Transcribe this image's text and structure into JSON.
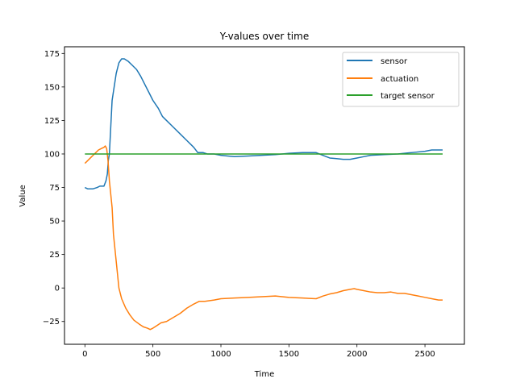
{
  "chart_data": {
    "type": "line",
    "title": "Y-values over time",
    "xlabel": "Time",
    "ylabel": "Value",
    "xlim": [
      -150,
      2790
    ],
    "ylim": [
      -42,
      180
    ],
    "xticks": [
      0,
      500,
      1000,
      1500,
      2000,
      2500
    ],
    "yticks": [
      -25,
      0,
      25,
      50,
      75,
      100,
      125,
      150,
      175
    ],
    "grid": false,
    "legend_position": "top-right",
    "series": [
      {
        "name": "sensor",
        "color": "#1f77b4",
        "points": [
          [
            0,
            75
          ],
          [
            20,
            74
          ],
          [
            60,
            74
          ],
          [
            90,
            75
          ],
          [
            110,
            76
          ],
          [
            140,
            76
          ],
          [
            155,
            80
          ],
          [
            165,
            85
          ],
          [
            172,
            95
          ],
          [
            180,
            100
          ],
          [
            190,
            120
          ],
          [
            200,
            140
          ],
          [
            215,
            150
          ],
          [
            230,
            160
          ],
          [
            250,
            168
          ],
          [
            270,
            171
          ],
          [
            290,
            171
          ],
          [
            320,
            169
          ],
          [
            350,
            166
          ],
          [
            380,
            163
          ],
          [
            410,
            158
          ],
          [
            440,
            152
          ],
          [
            470,
            146
          ],
          [
            500,
            140
          ],
          [
            540,
            134
          ],
          [
            570,
            128
          ],
          [
            600,
            125
          ],
          [
            650,
            120
          ],
          [
            700,
            115
          ],
          [
            750,
            110
          ],
          [
            800,
            105
          ],
          [
            830,
            101
          ],
          [
            870,
            101
          ],
          [
            900,
            100
          ],
          [
            950,
            100
          ],
          [
            1000,
            99
          ],
          [
            1050,
            98.5
          ],
          [
            1100,
            98
          ],
          [
            1200,
            98.5
          ],
          [
            1300,
            99
          ],
          [
            1400,
            99.5
          ],
          [
            1450,
            100
          ],
          [
            1500,
            100.5
          ],
          [
            1600,
            101
          ],
          [
            1700,
            101
          ],
          [
            1750,
            99
          ],
          [
            1800,
            97
          ],
          [
            1850,
            96.5
          ],
          [
            1900,
            96
          ],
          [
            1950,
            96
          ],
          [
            2000,
            97
          ],
          [
            2050,
            98
          ],
          [
            2100,
            99
          ],
          [
            2200,
            99.5
          ],
          [
            2300,
            100
          ],
          [
            2400,
            101
          ],
          [
            2500,
            102
          ],
          [
            2550,
            103
          ],
          [
            2630,
            103
          ]
        ]
      },
      {
        "name": "actuation",
        "color": "#ff7f0e",
        "points": [
          [
            0,
            93
          ],
          [
            20,
            95
          ],
          [
            40,
            97
          ],
          [
            60,
            99
          ],
          [
            80,
            101
          ],
          [
            100,
            103
          ],
          [
            120,
            104
          ],
          [
            140,
            105
          ],
          [
            150,
            106
          ],
          [
            160,
            104
          ],
          [
            170,
            95
          ],
          [
            180,
            80
          ],
          [
            190,
            70
          ],
          [
            200,
            60
          ],
          [
            210,
            40
          ],
          [
            220,
            30
          ],
          [
            230,
            20
          ],
          [
            240,
            10
          ],
          [
            250,
            0
          ],
          [
            270,
            -8
          ],
          [
            300,
            -15
          ],
          [
            330,
            -20
          ],
          [
            360,
            -24
          ],
          [
            400,
            -27
          ],
          [
            430,
            -29
          ],
          [
            460,
            -30
          ],
          [
            480,
            -31
          ],
          [
            500,
            -30
          ],
          [
            530,
            -28
          ],
          [
            560,
            -26
          ],
          [
            600,
            -25
          ],
          [
            650,
            -22
          ],
          [
            700,
            -19
          ],
          [
            750,
            -15
          ],
          [
            800,
            -12
          ],
          [
            840,
            -10
          ],
          [
            880,
            -10
          ],
          [
            950,
            -9
          ],
          [
            1000,
            -8
          ],
          [
            1100,
            -7.5
          ],
          [
            1200,
            -7
          ],
          [
            1300,
            -6.5
          ],
          [
            1400,
            -6
          ],
          [
            1500,
            -7
          ],
          [
            1600,
            -7.5
          ],
          [
            1700,
            -8
          ],
          [
            1750,
            -6
          ],
          [
            1800,
            -4.5
          ],
          [
            1850,
            -3.5
          ],
          [
            1900,
            -2
          ],
          [
            1950,
            -1
          ],
          [
            1980,
            -0.5
          ],
          [
            2000,
            -1
          ],
          [
            2050,
            -2
          ],
          [
            2100,
            -3
          ],
          [
            2150,
            -3.5
          ],
          [
            2200,
            -3.5
          ],
          [
            2250,
            -3
          ],
          [
            2300,
            -4
          ],
          [
            2350,
            -4
          ],
          [
            2400,
            -5
          ],
          [
            2450,
            -6
          ],
          [
            2500,
            -7
          ],
          [
            2550,
            -8
          ],
          [
            2600,
            -9
          ],
          [
            2630,
            -9
          ]
        ]
      },
      {
        "name": "target sensor",
        "color": "#2ca02c",
        "points": [
          [
            0,
            100
          ],
          [
            2630,
            100
          ]
        ]
      }
    ]
  }
}
